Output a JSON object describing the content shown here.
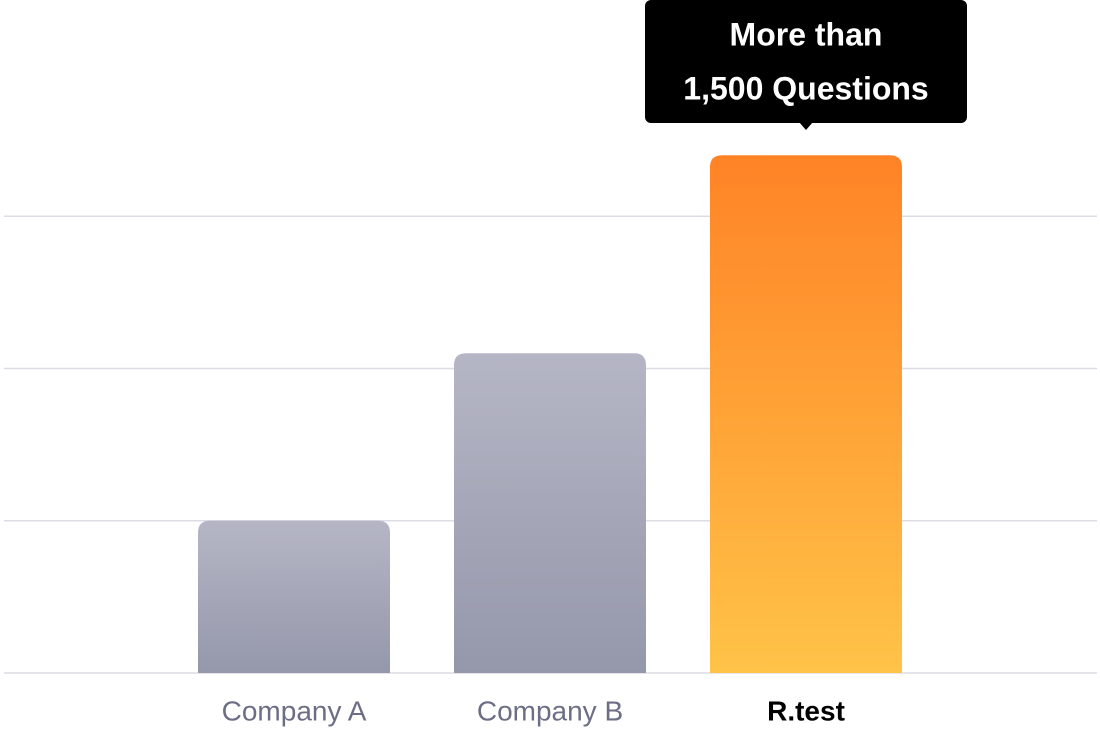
{
  "chart_data": {
    "type": "bar",
    "categories": [
      "Company A",
      "Company B",
      "R.test"
    ],
    "values": [
      1.0,
      2.1,
      3.4
    ],
    "colors": [
      [
        "#b5b6c5",
        "#9597ab"
      ],
      [
        "#b5b6c5",
        "#9597ab"
      ],
      [
        "#ff8326",
        "#ffc348"
      ]
    ],
    "highlight": "R.test",
    "annotation": {
      "lines": [
        "More than",
        "1,500 Questions"
      ],
      "category": "R.test"
    },
    "ylim": [
      0,
      4.42
    ],
    "yticks": [
      0,
      1,
      2,
      3
    ],
    "tick_labels": false,
    "grid": true
  }
}
